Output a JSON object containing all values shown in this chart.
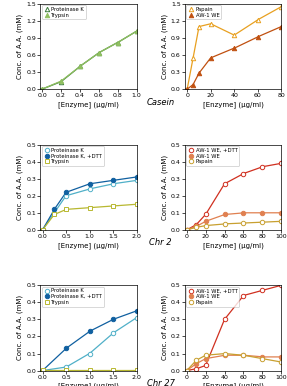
{
  "casein_left": {
    "xlabel": "[Enzyme] (μg/ml)",
    "ylabel": "Conc. of A.A. (mM)",
    "ylim": [
      0,
      1.5
    ],
    "yticks": [
      0.0,
      0.3,
      0.6,
      0.9,
      1.2,
      1.5
    ],
    "xlim": [
      -0.02,
      1.0
    ],
    "xticks": [
      0.0,
      0.2,
      0.4,
      0.6,
      0.8,
      1.0
    ],
    "series": [
      {
        "label": "Proteinase K",
        "x": [
          0,
          0.2,
          0.4,
          0.6,
          0.8,
          1.0
        ],
        "y": [
          0.0,
          0.13,
          0.4,
          0.64,
          0.82,
          1.02
        ],
        "color": "#3a7a3a",
        "marker": "^",
        "filled": false
      },
      {
        "label": "Trypsin",
        "x": [
          0,
          0.2,
          0.4,
          0.6,
          0.8,
          1.0
        ],
        "y": [
          0.0,
          0.14,
          0.4,
          0.64,
          0.82,
          1.02
        ],
        "color": "#90c060",
        "marker": "^",
        "filled": true
      }
    ]
  },
  "casein_right": {
    "xlabel": "[Enzyme] (μg/ml)",
    "ylabel": "Conc. of A.A. (mM)",
    "ylim": [
      0,
      1.5
    ],
    "yticks": [
      0.0,
      0.3,
      0.6,
      0.9,
      1.2,
      1.5
    ],
    "xlim": [
      -2,
      80
    ],
    "xticks": [
      0,
      20,
      40,
      60,
      80
    ],
    "row_label": "Casein",
    "series": [
      {
        "label": "Papain",
        "x": [
          0,
          5,
          10,
          20,
          40,
          60,
          80
        ],
        "y": [
          0.0,
          0.55,
          1.1,
          1.15,
          0.95,
          1.22,
          1.45
        ],
        "color": "#e8a020",
        "marker": "^",
        "filled": false
      },
      {
        "label": "AW-1 WE",
        "x": [
          0,
          5,
          10,
          20,
          40,
          60,
          80
        ],
        "y": [
          0.0,
          0.08,
          0.28,
          0.55,
          0.72,
          0.92,
          1.1
        ],
        "color": "#c05010",
        "marker": "^",
        "filled": true
      }
    ]
  },
  "chr2_left": {
    "xlabel": "[Enzyme] (μg/ml)",
    "ylabel": "Conc. of A.A. (mM)",
    "ylim": [
      0,
      0.5
    ],
    "yticks": [
      0.0,
      0.1,
      0.2,
      0.3,
      0.4,
      0.5
    ],
    "xlim": [
      -0.05,
      2.0
    ],
    "xticks": [
      0.0,
      0.5,
      1.0,
      1.5,
      2.0
    ],
    "series": [
      {
        "label": "Proteinase K",
        "x": [
          0,
          0.25,
          0.5,
          1.0,
          1.5,
          2.0
        ],
        "y": [
          0.0,
          0.1,
          0.2,
          0.24,
          0.27,
          0.29
        ],
        "color": "#50b0c8",
        "marker": "o",
        "filled": false
      },
      {
        "label": "Proteinase K, +DTT",
        "x": [
          0,
          0.25,
          0.5,
          1.0,
          1.5,
          2.0
        ],
        "y": [
          0.0,
          0.12,
          0.22,
          0.27,
          0.29,
          0.31
        ],
        "color": "#1060a0",
        "marker": "o",
        "filled": true
      },
      {
        "label": "Trypsin",
        "x": [
          0,
          0.25,
          0.5,
          1.0,
          1.5,
          2.0
        ],
        "y": [
          0.0,
          0.09,
          0.12,
          0.13,
          0.14,
          0.15
        ],
        "color": "#b8b830",
        "marker": "s",
        "filled": false
      }
    ]
  },
  "chr2_right": {
    "xlabel": "[Enzyme] (μg/ml)",
    "ylabel": "Conc. of A.A. (mM)",
    "ylim": [
      0,
      0.5
    ],
    "yticks": [
      0.0,
      0.1,
      0.2,
      0.3,
      0.4,
      0.5
    ],
    "xlim": [
      -2,
      100
    ],
    "xticks": [
      0,
      20,
      40,
      60,
      80,
      100
    ],
    "row_label": "Chr 2",
    "series": [
      {
        "label": "AW-1 WE, +DTT",
        "x": [
          0,
          10,
          20,
          40,
          60,
          80,
          100
        ],
        "y": [
          0.0,
          0.03,
          0.09,
          0.27,
          0.33,
          0.37,
          0.39
        ],
        "color": "#d03020",
        "marker": "o",
        "filled": false
      },
      {
        "label": "AW-1 WE",
        "x": [
          0,
          10,
          20,
          40,
          60,
          80,
          100
        ],
        "y": [
          0.0,
          0.02,
          0.05,
          0.09,
          0.1,
          0.1,
          0.1
        ],
        "color": "#e08050",
        "marker": "o",
        "filled": true
      },
      {
        "label": "Papain",
        "x": [
          0,
          10,
          20,
          40,
          60,
          80,
          100
        ],
        "y": [
          0.0,
          0.015,
          0.025,
          0.035,
          0.04,
          0.045,
          0.05
        ],
        "color": "#c8a030",
        "marker": "o",
        "filled": false
      }
    ]
  },
  "chr27_left": {
    "xlabel": "[Enzyme] (μg/ml)",
    "ylabel": "Conc. of A.A. (mM)",
    "ylim": [
      0,
      0.5
    ],
    "yticks": [
      0.0,
      0.1,
      0.2,
      0.3,
      0.4,
      0.5
    ],
    "xlim": [
      -0.05,
      2.0
    ],
    "xticks": [
      0.0,
      0.5,
      1.0,
      1.5,
      2.0
    ],
    "series": [
      {
        "label": "Proteinase K",
        "x": [
          0,
          0.5,
          1.0,
          1.5,
          2.0
        ],
        "y": [
          0.0,
          0.02,
          0.1,
          0.22,
          0.31
        ],
        "color": "#50b0c8",
        "marker": "o",
        "filled": false
      },
      {
        "label": "Proteinase K, +DTT",
        "x": [
          0,
          0.5,
          1.0,
          1.5,
          2.0
        ],
        "y": [
          0.0,
          0.13,
          0.23,
          0.3,
          0.35
        ],
        "color": "#1060a0",
        "marker": "o",
        "filled": true
      },
      {
        "label": "Trypsin",
        "x": [
          0,
          0.5,
          1.0,
          1.5,
          2.0
        ],
        "y": [
          0.005,
          0.005,
          0.005,
          0.005,
          0.005
        ],
        "color": "#b8b830",
        "marker": "s",
        "filled": false
      }
    ]
  },
  "chr27_right": {
    "xlabel": "[Enzyme] (μg/ml)",
    "ylabel": "Conc. of A.A. (mM)",
    "ylim": [
      0,
      0.5
    ],
    "yticks": [
      0.0,
      0.1,
      0.2,
      0.3,
      0.4,
      0.5
    ],
    "xlim": [
      -2,
      100
    ],
    "xticks": [
      0,
      20,
      40,
      60,
      80,
      100
    ],
    "row_label": "Chr 27",
    "series": [
      {
        "label": "AW-1 WE, +DTT",
        "x": [
          0,
          10,
          20,
          40,
          60,
          80,
          100
        ],
        "y": [
          0.0,
          0.01,
          0.03,
          0.3,
          0.44,
          0.47,
          0.5
        ],
        "color": "#d03020",
        "marker": "o",
        "filled": false
      },
      {
        "label": "AW-1 WE",
        "x": [
          0,
          10,
          20,
          40,
          60,
          80,
          100
        ],
        "y": [
          0.0,
          0.04,
          0.07,
          0.09,
          0.09,
          0.08,
          0.08
        ],
        "color": "#e08050",
        "marker": "o",
        "filled": true
      },
      {
        "label": "Papain",
        "x": [
          0,
          10,
          20,
          40,
          60,
          80,
          100
        ],
        "y": [
          0.0,
          0.06,
          0.09,
          0.1,
          0.09,
          0.07,
          0.05
        ],
        "color": "#c8a030",
        "marker": "o",
        "filled": false
      }
    ]
  }
}
